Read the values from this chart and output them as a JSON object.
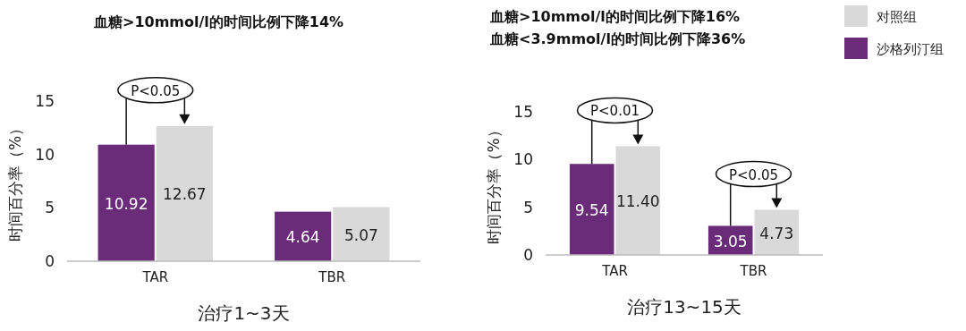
{
  "chart_data": [
    {
      "type": "bar",
      "title": "血糖>10mmol/l的时间比例下降14%",
      "xlabel": "治疗1~3天",
      "ylabel": "时间百分率（%）",
      "categories": [
        "TAR",
        "TBR"
      ],
      "ylim": [
        0,
        15
      ],
      "yticks": [
        0,
        5,
        10,
        15
      ],
      "grid": false,
      "legend": false,
      "series": [
        {
          "color": "#6a2c79",
          "values": [
            10.92,
            4.64
          ],
          "value_labels": [
            "10.92",
            "4.64"
          ]
        },
        {
          "color": "#d9d9d9",
          "values": [
            12.67,
            5.07
          ],
          "value_labels": [
            "12.67",
            "5.07"
          ]
        }
      ],
      "annotations": [
        {
          "text": "P<0.05",
          "x": "TAR",
          "y": 12.67
        }
      ]
    },
    {
      "type": "bar",
      "title": "血糖>10mmol/l的时间比例下降16%",
      "subtitle": "血糖<3.9mmol/l的时间比例下降36%",
      "xlabel": "治疗13~15天",
      "ylabel": "时间百分率（%）",
      "categories": [
        "TAR",
        "TBR"
      ],
      "ylim": [
        0,
        15
      ],
      "yticks": [
        0,
        5,
        10,
        15
      ],
      "grid": false,
      "legend": "right",
      "series": [
        {
          "name": "沙格列汀组",
          "color": "#6a2c79",
          "values": [
            9.54,
            3.05
          ],
          "value_labels": [
            "9.54",
            "3.05"
          ]
        },
        {
          "name": "对照组",
          "color": "#d9d9d9",
          "values": [
            11.4,
            4.73
          ],
          "value_labels": [
            "11.40",
            "4.73"
          ]
        }
      ],
      "annotations": [
        {
          "text": "P<0.01",
          "x": "TAR",
          "y": 11.4
        },
        {
          "text": "P<0.05",
          "x": "TBR",
          "y": 4.73
        }
      ]
    }
  ]
}
